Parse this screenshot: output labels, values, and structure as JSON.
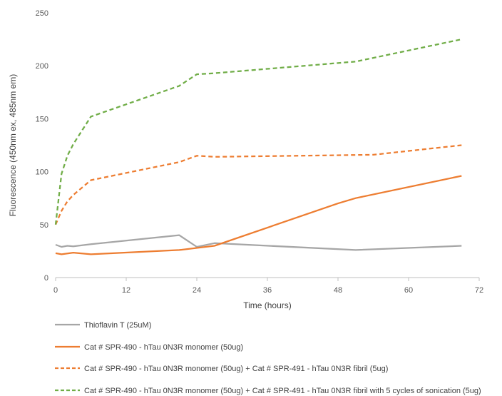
{
  "chart_data": {
    "type": "line",
    "xlabel": "Time (hours)",
    "ylabel": "Fluorescence (450nm ex, 485nm em)",
    "xlim": [
      0,
      72
    ],
    "ylim": [
      0,
      250
    ],
    "xticks": [
      0,
      12,
      24,
      36,
      48,
      60,
      72
    ],
    "yticks": [
      0,
      50,
      100,
      150,
      200,
      250
    ],
    "grid": false,
    "legend_position": "bottom",
    "series": [
      {
        "name": "Thioflavin T (25uM)",
        "color": "#a6a6a6",
        "dash": "solid",
        "points": [
          [
            0,
            31
          ],
          [
            1,
            29
          ],
          [
            2,
            30
          ],
          [
            3,
            29.5
          ],
          [
            6,
            31.5
          ],
          [
            21,
            40
          ],
          [
            24,
            29
          ],
          [
            27,
            32.5
          ],
          [
            51,
            26
          ],
          [
            69,
            30
          ]
        ]
      },
      {
        "name": "Cat # SPR-490 - hTau 0N3R monomer (50ug)",
        "color": "#ed7d31",
        "dash": "solid",
        "points": [
          [
            0,
            23
          ],
          [
            1,
            22
          ],
          [
            3,
            23.5
          ],
          [
            6,
            22
          ],
          [
            21,
            26
          ],
          [
            27,
            30
          ],
          [
            48,
            70
          ],
          [
            51,
            75
          ],
          [
            69,
            96
          ]
        ]
      },
      {
        "name": "Cat # SPR-490 - hTau 0N3R monomer (50ug) + Cat # SPR-491 - hTau 0N3R fibril (5ug)",
        "color": "#ed7d31",
        "dash": "dashed",
        "points": [
          [
            0,
            50
          ],
          [
            1,
            63
          ],
          [
            2,
            72
          ],
          [
            3,
            78
          ],
          [
            6,
            92
          ],
          [
            21,
            109
          ],
          [
            24,
            115
          ],
          [
            27,
            114
          ],
          [
            54,
            116
          ],
          [
            69,
            125
          ]
        ]
      },
      {
        "name": "Cat # SPR-490 - hTau 0N3R monomer (50ug) + Cat # SPR-491 - hTau 0N3R fibril with 5 cycles of sonication (5ug)",
        "color": "#70ad47",
        "dash": "dashed",
        "points": [
          [
            0,
            50
          ],
          [
            1,
            98
          ],
          [
            2,
            115
          ],
          [
            3,
            126
          ],
          [
            6,
            152
          ],
          [
            21,
            181
          ],
          [
            24,
            192
          ],
          [
            27,
            193
          ],
          [
            51,
            204
          ],
          [
            69,
            225
          ]
        ]
      }
    ]
  }
}
